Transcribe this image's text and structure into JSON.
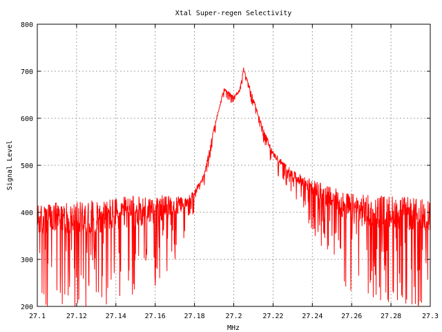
{
  "chart_data": {
    "type": "line",
    "title": "Xtal Super-regen Selectivity",
    "xlabel": "MHz",
    "ylabel": "Signal Level",
    "xlim": [
      27.1,
      27.3
    ],
    "ylim": [
      200,
      800
    ],
    "x_ticks": [
      "27.1",
      "27.12",
      "27.14",
      "27.16",
      "27.18",
      "27.2",
      "27.22",
      "27.24",
      "27.26",
      "27.28",
      "27.3"
    ],
    "y_ticks": [
      "200",
      "300",
      "400",
      "500",
      "600",
      "700",
      "800"
    ],
    "grid": true,
    "legend": "none",
    "series": [
      {
        "color": "#ff0000",
        "noisy": true,
        "x": [
          27.1,
          27.11,
          27.12,
          27.13,
          27.14,
          27.15,
          27.16,
          27.17,
          27.175,
          27.18,
          27.185,
          27.19,
          27.195,
          27.2,
          27.203,
          27.205,
          27.21,
          27.215,
          27.22,
          27.23,
          27.24,
          27.25,
          27.26,
          27.27,
          27.28,
          27.29,
          27.3
        ],
        "values": [
          385,
          390,
          390,
          395,
          400,
          405,
          410,
          415,
          420,
          440,
          480,
          580,
          662,
          645,
          660,
          705,
          640,
          575,
          525,
          480,
          455,
          430,
          410,
          405,
          405,
          400,
          395
        ],
        "noise_amplitude": [
          90,
          95,
          95,
          95,
          95,
          90,
          80,
          60,
          35,
          20,
          12,
          10,
          8,
          8,
          8,
          8,
          10,
          12,
          15,
          25,
          45,
          70,
          90,
          95,
          95,
          95,
          95
        ]
      }
    ]
  }
}
